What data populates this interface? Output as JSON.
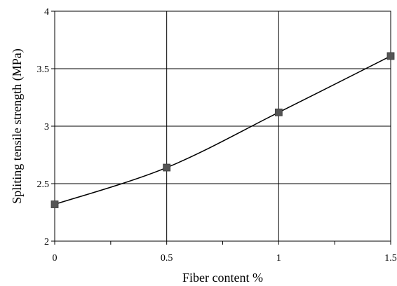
{
  "chart_data": {
    "type": "line",
    "title": "",
    "xlabel": "Fiber content %",
    "ylabel": "Spliting tensile strength (MPa)",
    "xlim": [
      0,
      1.5
    ],
    "ylim": [
      2,
      4
    ],
    "x_ticks": [
      "0",
      "0.5",
      "1",
      "1.5"
    ],
    "y_ticks": [
      "2",
      "2.5",
      "3",
      "3.5",
      "4"
    ],
    "grid": true,
    "smooth": true,
    "marker": "square",
    "series": [
      {
        "x": [
          0,
          0.5,
          1,
          1.5
        ],
        "values": [
          2.32,
          2.64,
          3.12,
          3.61
        ],
        "color": "#555555"
      }
    ]
  }
}
